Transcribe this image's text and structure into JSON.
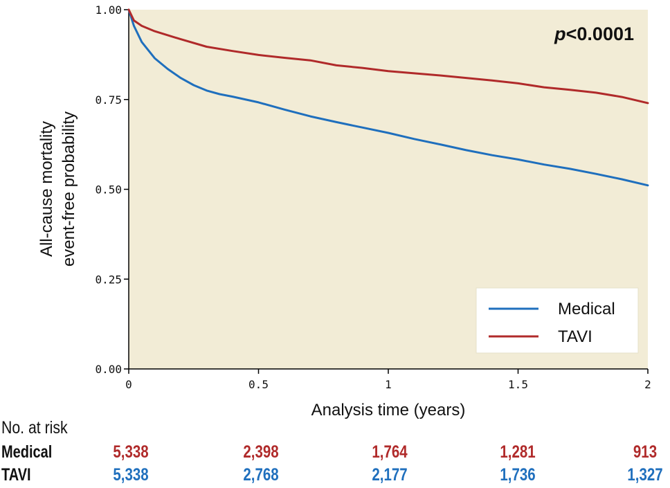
{
  "colors": {
    "plot_background": "#f2ecd6",
    "medical": "#1f6fbd",
    "tavi": "#b02a2a",
    "medical_risk_text": "#b02a2a",
    "tavi_risk_text": "#1f6fbd"
  },
  "chart_data": {
    "type": "line",
    "title": "",
    "annotation": {
      "italic": "p",
      "rest": "<0.0001"
    },
    "xlabel": "Analysis time (years)",
    "ylabel_lines": [
      "All-cause mortality",
      "event-free probability"
    ],
    "xlim": [
      0,
      2
    ],
    "ylim": [
      0,
      1
    ],
    "x_ticks": [
      "0",
      "0.5",
      "1",
      "1.5",
      "2"
    ],
    "y_ticks": [
      "0.00",
      "0.25",
      "0.50",
      "0.75",
      "1.00"
    ],
    "grid": false,
    "legend_position": "bottom-right",
    "series": [
      {
        "name": "Medical",
        "color": "#1f6fbd",
        "x": [
          0,
          0.02,
          0.05,
          0.1,
          0.15,
          0.2,
          0.25,
          0.3,
          0.35,
          0.4,
          0.5,
          0.6,
          0.7,
          0.8,
          0.9,
          1.0,
          1.1,
          1.2,
          1.3,
          1.4,
          1.5,
          1.6,
          1.7,
          1.8,
          1.9,
          2.0
        ],
        "values": [
          1.0,
          0.955,
          0.91,
          0.865,
          0.835,
          0.81,
          0.79,
          0.775,
          0.765,
          0.758,
          0.742,
          0.722,
          0.703,
          0.687,
          0.672,
          0.657,
          0.64,
          0.625,
          0.609,
          0.595,
          0.583,
          0.569,
          0.557,
          0.543,
          0.528,
          0.511
        ]
      },
      {
        "name": "TAVI",
        "color": "#b02a2a",
        "x": [
          0,
          0.02,
          0.05,
          0.1,
          0.2,
          0.3,
          0.4,
          0.5,
          0.6,
          0.7,
          0.8,
          0.9,
          1.0,
          1.1,
          1.2,
          1.3,
          1.4,
          1.5,
          1.6,
          1.7,
          1.8,
          1.9,
          2.0
        ],
        "values": [
          1.0,
          0.97,
          0.955,
          0.94,
          0.918,
          0.897,
          0.885,
          0.874,
          0.866,
          0.859,
          0.845,
          0.838,
          0.829,
          0.823,
          0.817,
          0.81,
          0.803,
          0.795,
          0.784,
          0.777,
          0.769,
          0.757,
          0.74
        ]
      }
    ]
  },
  "risk_table": {
    "title": "No. at risk",
    "rows": [
      {
        "label": "Medical",
        "values": [
          "5,338",
          "2,398",
          "1,764",
          "1,281",
          "913"
        ]
      },
      {
        "label": "TAVI",
        "values": [
          "5,338",
          "2,768",
          "2,177",
          "1,736",
          "1,327"
        ]
      }
    ]
  }
}
